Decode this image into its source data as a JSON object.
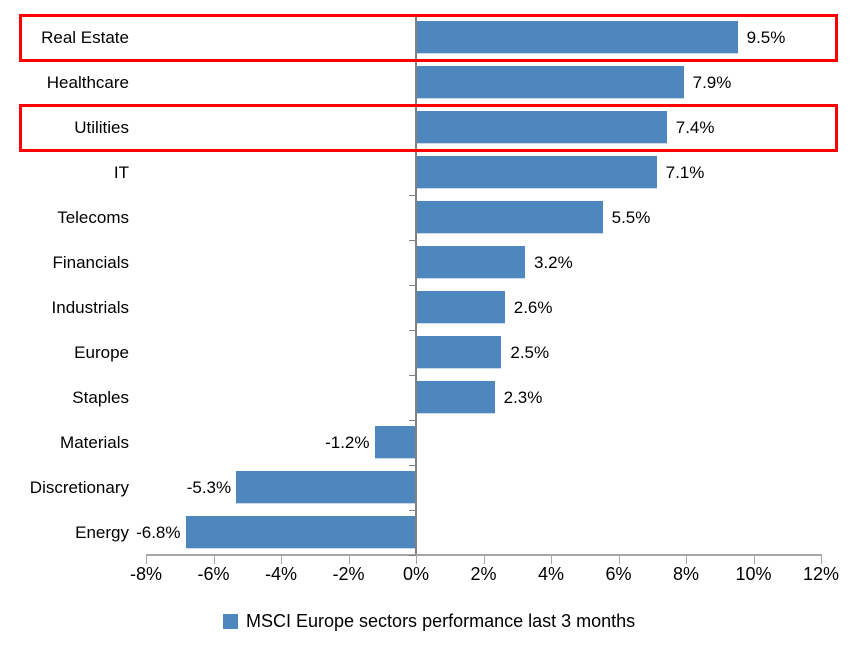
{
  "chart_data": {
    "type": "bar",
    "orientation": "horizontal",
    "title": "",
    "xlabel": "",
    "ylabel": "",
    "categories": [
      "Real Estate",
      "Healthcare",
      "Utilities",
      "IT",
      "Telecoms",
      "Financials",
      "Industrials",
      "Europe",
      "Staples",
      "Materials",
      "Discretionary",
      "Energy"
    ],
    "values": [
      9.5,
      7.9,
      7.4,
      7.1,
      5.5,
      3.2,
      2.6,
      2.5,
      2.3,
      -1.2,
      -5.3,
      -6.8
    ],
    "data_labels": [
      "9.5%",
      "7.9%",
      "7.4%",
      "7.1%",
      "5.5%",
      "3.2%",
      "2.6%",
      "2.5%",
      "2.3%",
      "-1.2%",
      "-5.3%",
      "-6.8%"
    ],
    "xlim": [
      -8,
      12
    ],
    "x_tick_step": 2,
    "x_ticks": [
      "-8%",
      "-6%",
      "-4%",
      "-2%",
      "0%",
      "2%",
      "4%",
      "6%",
      "8%",
      "10%",
      "12%"
    ],
    "grid": false,
    "legend_position": "bottom",
    "legend_label": "MSCI Europe sectors performance last 3 months",
    "highlighted_categories": [
      "Real Estate",
      "Utilities"
    ],
    "colors": {
      "bar": "#4e86be",
      "highlight_box": "#ff0000",
      "axis_line": "#a6a6a6",
      "zero_line": "#808080",
      "text": "#000000",
      "background": "#ffffff"
    }
  }
}
